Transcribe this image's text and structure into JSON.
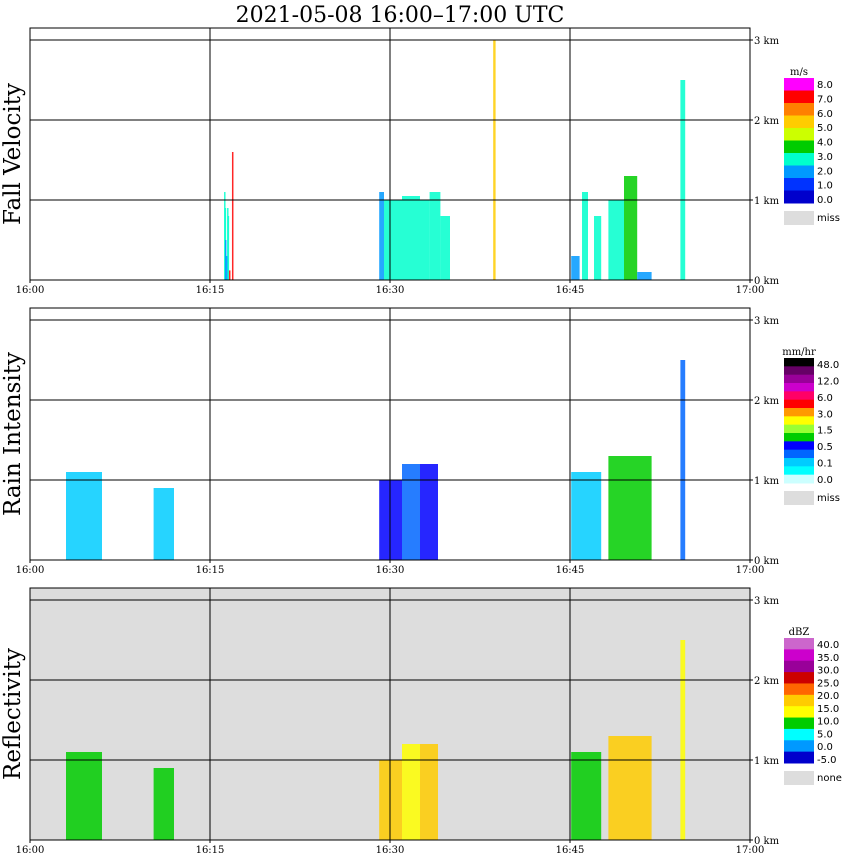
{
  "page": {
    "title": "2021-05-08   16:00–17:00 UTC"
  },
  "chart_data": [
    {
      "type": "heatmap",
      "ylabel": "Fall Velocity",
      "xlabel": "",
      "x_ticks": [
        "16:00",
        "16:15",
        "16:30",
        "16:45",
        "17:00"
      ],
      "x_range": [
        "16:00",
        "17:00"
      ],
      "y_ticks": [
        "0 km",
        "1 km",
        "2 km",
        "3 km"
      ],
      "y_range_km": [
        0,
        3.0
      ],
      "grid": true,
      "background": "#ffffff",
      "legend": {
        "unit": "m/s",
        "labels": [
          "8.0",
          "7.0",
          "6.0",
          "5.0",
          "4.0",
          "3.0",
          "2.0",
          "1.0",
          "0.0"
        ],
        "colors": [
          "#ff00ff",
          "#ff0000",
          "#ff8000",
          "#ffcc00",
          "#ccff00",
          "#00cc00",
          "#00ffcc",
          "#0099ff",
          "#0033ff",
          "#0000cc"
        ],
        "miss_label": "miss",
        "miss_color": "#dddddd"
      },
      "echoes": [
        {
          "t0": 16.17,
          "t1": 16.22,
          "hmax": 1.1,
          "level": 2
        },
        {
          "t0": 16.22,
          "t1": 16.25,
          "hmax": 0.9,
          "level": 2
        },
        {
          "t0": 16.25,
          "t1": 16.3,
          "hmax": 0.5,
          "level": 1
        },
        {
          "t0": 16.42,
          "t1": 16.45,
          "hmax": 0.9,
          "level": 2
        },
        {
          "t0": 16.47,
          "t1": 16.5,
          "hmax": 0.8,
          "level": 2
        },
        {
          "t0": 16.33,
          "t1": 16.37,
          "hmax": 0.3,
          "level": 1
        },
        {
          "t0": 16.58,
          "t1": 16.6,
          "hmax": 0.12,
          "level": 7
        },
        {
          "t0": 16.83,
          "t1": 16.85,
          "hmax": 1.6,
          "level": 7
        },
        {
          "t0": 29.1,
          "t1": 29.5,
          "hmax": 1.1,
          "level": 1
        },
        {
          "t0": 29.5,
          "t1": 31.0,
          "hmax": 1.0,
          "level": 2
        },
        {
          "t0": 31.0,
          "t1": 32.5,
          "hmax": 1.05,
          "level": 2
        },
        {
          "t0": 32.5,
          "t1": 33.3,
          "hmax": 1.0,
          "level": 2
        },
        {
          "t0": 33.3,
          "t1": 34.2,
          "hmax": 1.1,
          "level": 2
        },
        {
          "t0": 34.2,
          "t1": 35.0,
          "hmax": 0.8,
          "level": 2
        },
        {
          "t0": 45.1,
          "t1": 45.8,
          "hmax": 0.3,
          "level": 1
        },
        {
          "t0": 46.0,
          "t1": 46.5,
          "hmax": 1.1,
          "level": 2
        },
        {
          "t0": 47.0,
          "t1": 47.6,
          "hmax": 0.8,
          "level": 2
        },
        {
          "t0": 48.2,
          "t1": 49.5,
          "hmax": 1.0,
          "level": 2
        },
        {
          "t0": 49.5,
          "t1": 50.6,
          "hmax": 1.3,
          "level": 3
        },
        {
          "t0": 50.6,
          "t1": 51.8,
          "hmax": 0.1,
          "level": 1
        },
        {
          "t0": 54.2,
          "t1": 54.6,
          "hmax": 2.5,
          "level": 2
        },
        {
          "t0": 38.6,
          "t1": 38.8,
          "hmax": 3.0,
          "level": 5
        }
      ]
    },
    {
      "type": "heatmap",
      "ylabel": "Rain Intensity",
      "xlabel": "",
      "x_ticks": [
        "16:00",
        "16:15",
        "16:30",
        "16:45",
        "17:00"
      ],
      "x_range": [
        "16:00",
        "17:00"
      ],
      "y_ticks": [
        "0 km",
        "1 km",
        "2 km",
        "3 km"
      ],
      "y_range_km": [
        0,
        3.0
      ],
      "grid": true,
      "background": "#ffffff",
      "legend": {
        "unit": "mm/hr",
        "labels": [
          "48.0",
          "12.0",
          "6.0",
          "3.0",
          "1.5",
          "0.5",
          "0.1",
          "0.0"
        ],
        "colors": [
          "#000000",
          "#660066",
          "#990099",
          "#cc00cc",
          "#ff0066",
          "#ff0000",
          "#ff9900",
          "#ffff00",
          "#99ff33",
          "#00cc00",
          "#0000ff",
          "#0066ff",
          "#00ccff",
          "#00ffff",
          "#ccffff"
        ],
        "miss_label": "miss",
        "miss_color": "#dddddd"
      },
      "echoes": [
        {
          "t0": 3.0,
          "t1": 6.0,
          "hmax": 1.1,
          "level": 1
        },
        {
          "t0": 10.3,
          "t1": 12.0,
          "hmax": 0.9,
          "level": 1
        },
        {
          "t0": 29.1,
          "t1": 31.0,
          "hmax": 1.0,
          "level": 3
        },
        {
          "t0": 31.0,
          "t1": 32.5,
          "hmax": 1.2,
          "level": 2
        },
        {
          "t0": 32.5,
          "t1": 34.0,
          "hmax": 1.2,
          "level": 3
        },
        {
          "t0": 45.1,
          "t1": 47.6,
          "hmax": 1.1,
          "level": 1
        },
        {
          "t0": 48.2,
          "t1": 51.8,
          "hmax": 1.3,
          "level": 4
        },
        {
          "t0": 54.2,
          "t1": 54.6,
          "hmax": 2.5,
          "level": 2
        }
      ]
    },
    {
      "type": "heatmap",
      "ylabel": "Reflectivity",
      "xlabel": "",
      "x_ticks": [
        "16:00",
        "16:15",
        "16:30",
        "16:45",
        "17:00"
      ],
      "x_range": [
        "16:00",
        "17:00"
      ],
      "y_ticks": [
        "0 km",
        "1 km",
        "2 km",
        "3 km"
      ],
      "y_range_km": [
        0,
        3.0
      ],
      "grid": true,
      "background": "#dddddd",
      "legend": {
        "unit": "dBZ",
        "labels": [
          "40.0",
          "35.0",
          "30.0",
          "25.0",
          "20.0",
          "15.0",
          "10.0",
          "5.0",
          "0.0",
          "-5.0"
        ],
        "colors": [
          "#cc66cc",
          "#cc00cc",
          "#990099",
          "#cc0000",
          "#ff6600",
          "#ffcc00",
          "#ffff00",
          "#00cc00",
          "#00ffff",
          "#0099ff",
          "#0000cc"
        ],
        "miss_label": "none",
        "miss_color": "#dddddd"
      },
      "echoes": [
        {
          "t0": 3.0,
          "t1": 6.0,
          "hmax": 1.1,
          "level": 2
        },
        {
          "t0": 10.3,
          "t1": 12.0,
          "hmax": 0.9,
          "level": 2
        },
        {
          "t0": 29.1,
          "t1": 31.0,
          "hmax": 1.0,
          "level": 4
        },
        {
          "t0": 31.0,
          "t1": 32.5,
          "hmax": 1.2,
          "level": 3
        },
        {
          "t0": 32.5,
          "t1": 34.0,
          "hmax": 1.2,
          "level": 4
        },
        {
          "t0": 45.1,
          "t1": 47.6,
          "hmax": 1.1,
          "level": 2
        },
        {
          "t0": 48.2,
          "t1": 51.8,
          "hmax": 1.3,
          "level": 4
        },
        {
          "t0": 54.2,
          "t1": 54.6,
          "hmax": 2.5,
          "level": 3
        }
      ]
    }
  ]
}
